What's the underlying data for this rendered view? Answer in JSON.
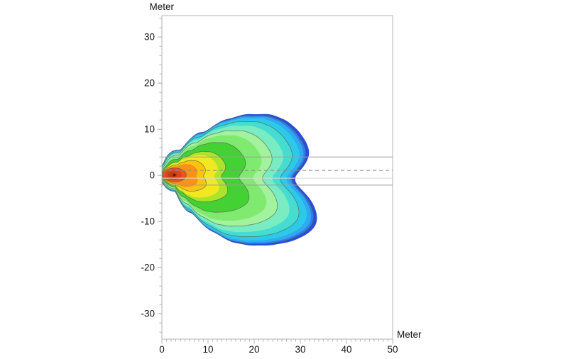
{
  "figure": {
    "background": "#ffffff",
    "description": "Illuminance contour plot of a luminaire on a roadway, plan view"
  },
  "chart_data": {
    "type": "contour",
    "title": "",
    "xlabel": "Meter",
    "ylabel": "Meter",
    "x_range": [
      0,
      50
    ],
    "y_range": [
      -35.5,
      34.65
    ],
    "x_ticks": [
      0,
      10,
      20,
      30,
      40,
      50
    ],
    "y_ticks": [
      30,
      20,
      10,
      0,
      -10,
      -20,
      -30
    ],
    "x_minor_step": 1,
    "y_minor_step": 2,
    "grid": false,
    "legend": "none",
    "hotspot_center_m": {
      "x": 2.7,
      "y": 0.1
    },
    "inner_ellipse_m": {
      "cx": 2.8,
      "cy": 0.1,
      "rx": 2.5,
      "ry": 1.5,
      "color": "#ef531c"
    },
    "core1_m": {
      "rx": 1.8,
      "ry": 1.1,
      "color": "#d9441a"
    },
    "core2_m": {
      "rx": 0.95,
      "ry": 0.6,
      "color": "#c03a12"
    },
    "source_marker": {
      "x": 2.7,
      "y": 0.1,
      "r_m": 0.28,
      "color": "#541b04"
    },
    "outline_m": [
      [
        0,
        2.2
      ],
      [
        3.8,
        5.5
      ],
      [
        9,
        9.3
      ],
      [
        14.1,
        12.2
      ],
      [
        19.2,
        13.3
      ],
      [
        24.4,
        13
      ],
      [
        27.5,
        11.6
      ],
      [
        29.9,
        9.3
      ],
      [
        31.5,
        6.8
      ],
      [
        32.1,
        4.7
      ],
      [
        31,
        2.2
      ],
      [
        29,
        0.1
      ],
      [
        28.4,
        -0.85
      ],
      [
        29.5,
        -2.4
      ],
      [
        32.1,
        -5
      ],
      [
        33.3,
        -7.3
      ],
      [
        33.8,
        -9.2
      ],
      [
        33.3,
        -11.2
      ],
      [
        31.5,
        -12.7
      ],
      [
        28.4,
        -14.2
      ],
      [
        24.4,
        -15
      ],
      [
        20.2,
        -15.2
      ],
      [
        16.1,
        -14.7
      ],
      [
        11,
        -12.2
      ],
      [
        6.4,
        -8.1
      ],
      [
        2.8,
        -3.5
      ],
      [
        0,
        -1.5
      ],
      [
        0,
        0.1
      ]
    ],
    "bands": [
      {
        "level": 1.0,
        "color": "#2a4ed8"
      },
      {
        "level": 0.974,
        "color": "#2e7fe9"
      },
      {
        "level": 0.955,
        "color": "#2fa9f1"
      },
      {
        "level": 0.922,
        "color": "#2dc9e9"
      },
      {
        "level": 0.864,
        "color": "#45dcd1"
      },
      {
        "level": 0.792,
        "color": "#79edc1"
      },
      {
        "level": 0.701,
        "color": "#a2f29e"
      },
      {
        "level": 0.617,
        "color": "#80e96f"
      },
      {
        "level": 0.487,
        "color": "#43d134"
      },
      {
        "level": 0.325,
        "color": "#abe42b"
      },
      {
        "level": 0.26,
        "color": "#f2e822"
      },
      {
        "level": 0.162,
        "color": "#fcc40c"
      },
      {
        "level": 0.097,
        "color": "#fb9213"
      }
    ],
    "contour_line_levels": [
      0.162,
      0.325,
      0.487,
      0.701,
      0.864,
      0.974
    ],
    "reference_lines": [
      {
        "y_m": 4.0,
        "style": "solid"
      },
      {
        "y_m": 1.1,
        "style": "dashed"
      },
      {
        "y_m": -0.6,
        "style": "faint"
      },
      {
        "y_m": -2.1,
        "style": "solid"
      }
    ]
  },
  "style": {
    "border_color": "#b3b3b3",
    "tick_color": "#b5b5b5",
    "label_color": "#141414",
    "contour_line_color": "#51604f",
    "ref_solid_color": "#9c9c9c",
    "ref_dashed_color": "#8c8c8c",
    "ref_faint_color": "#dadada"
  }
}
